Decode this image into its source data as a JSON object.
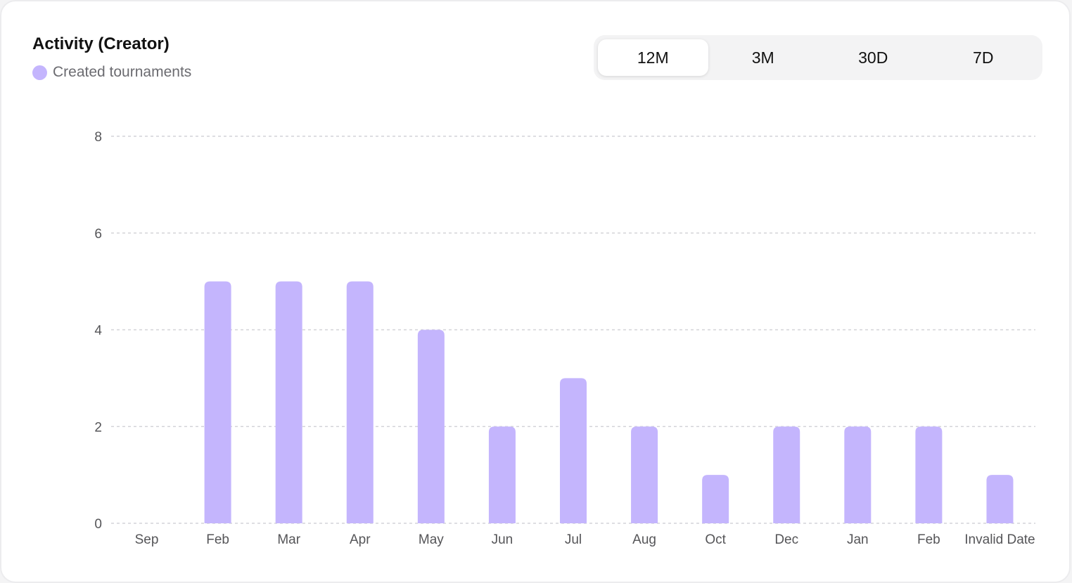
{
  "card": {
    "title": "Activity (Creator)"
  },
  "range_selector": {
    "options": [
      {
        "label": "12M",
        "active": true
      },
      {
        "label": "3M",
        "active": false
      },
      {
        "label": "30D",
        "active": false
      },
      {
        "label": "7D",
        "active": false
      }
    ]
  },
  "colors": {
    "bar": "#c4b5fd",
    "grid": "#d4d4d8"
  },
  "chart_data": {
    "type": "bar",
    "title": "Activity (Creator)",
    "categories": [
      "Sep",
      "Feb",
      "Mar",
      "Apr",
      "May",
      "Jun",
      "Jul",
      "Aug",
      "Oct",
      "Dec",
      "Jan",
      "Feb",
      "Invalid Date"
    ],
    "series": [
      {
        "name": "Created tournaments",
        "values": [
          0,
          5,
          5,
          5,
          4,
          2,
          3,
          2,
          1,
          2,
          2,
          2,
          1
        ]
      }
    ],
    "ylim": [
      0,
      8
    ],
    "yticks": [
      0,
      2,
      4,
      6,
      8
    ],
    "grid": true,
    "legend": "top-left"
  }
}
